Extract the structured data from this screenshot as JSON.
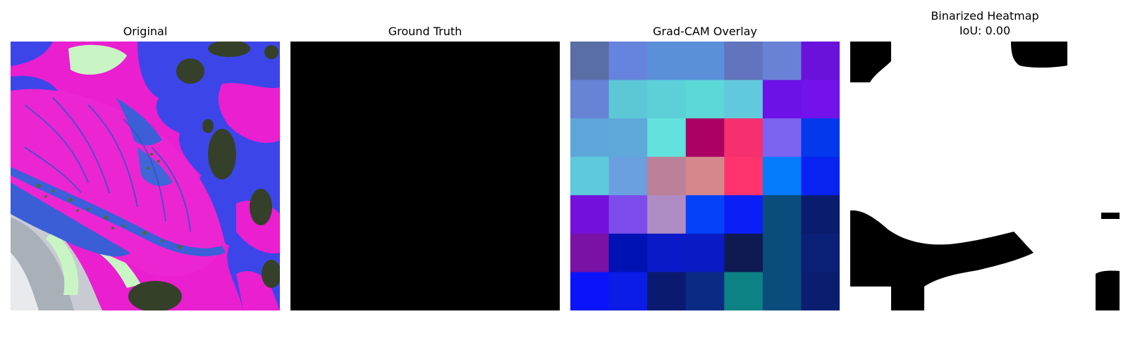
{
  "panels": {
    "original": {
      "title": "Original"
    },
    "ground_truth": {
      "title": "Ground Truth"
    },
    "gradcam": {
      "title": "Grad-CAM Overlay",
      "grid_colors": [
        [
          "#5a6ea6",
          "#6683dd",
          "#5a8fda",
          "#5a8fda",
          "#6274bd",
          "#6a82d6",
          "#6a12dc"
        ],
        [
          "#6683d6",
          "#5cc8d6",
          "#5ccfd8",
          "#5cd8d8",
          "#62c8dc",
          "#6c12e6",
          "#7412ec"
        ],
        [
          "#5ea6da",
          "#5ea8da",
          "#62e2dc",
          "#ac0064",
          "#f6306e",
          "#7e62f0",
          "#0438ec"
        ],
        [
          "#5ec8dc",
          "#6aa0e0",
          "#bc8098",
          "#d4888c",
          "#ff346e",
          "#047cfc",
          "#0822f2"
        ],
        [
          "#7410dc",
          "#7e4cec",
          "#b08cc4",
          "#0442fa",
          "#0a1ff8",
          "#0a4c7c",
          "#0a1c6e"
        ],
        [
          "#7a12a6",
          "#0012b4",
          "#0a1ac8",
          "#0a1ac4",
          "#0f1a52",
          "#0a4c7c",
          "#0a2076"
        ],
        [
          "#0a14fa",
          "#0a1ce6",
          "#0a1a70",
          "#0a2a84",
          "#0d8284",
          "#0a4c7c",
          "#0a1e70"
        ]
      ]
    },
    "binarized": {
      "title_line1": "Binarized Heatmap",
      "title_line2": "IoU: 0.00"
    }
  }
}
